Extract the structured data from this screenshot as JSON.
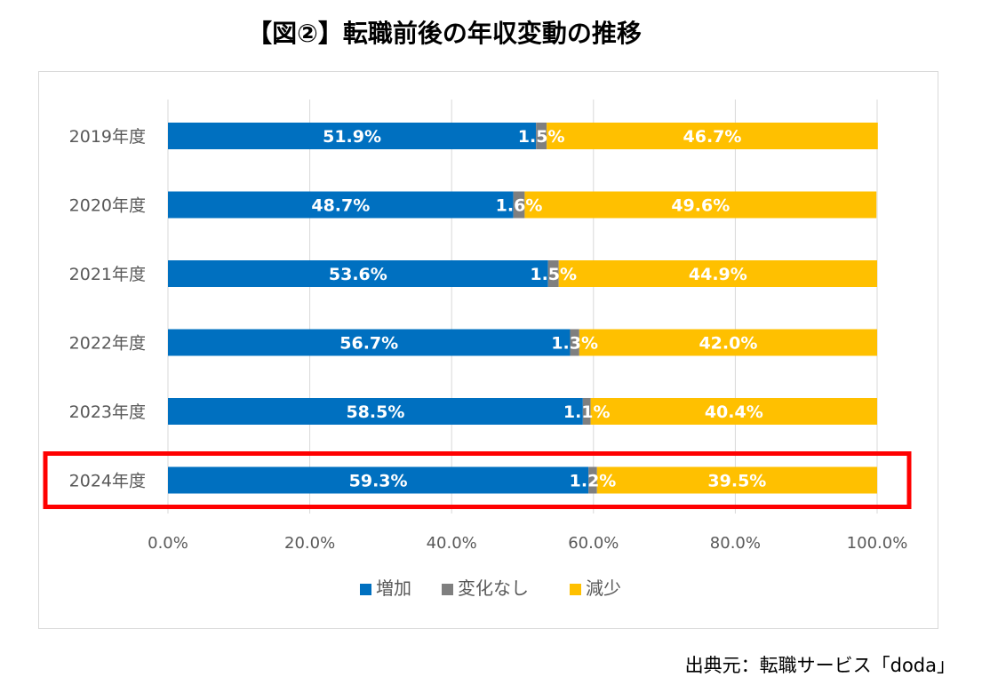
{
  "title": "【図②】転職前後の年収変動の推移",
  "source": "出典元：転職サービス「doda」",
  "colors": {
    "increase": "#0070C0",
    "no_change": "#7F7F7F",
    "decrease": "#FFC000",
    "highlight": "#FF0000",
    "grid": "#d9d9d9",
    "axis_text": "#595959"
  },
  "chart_data": {
    "type": "bar",
    "orientation": "horizontal",
    "stacked": true,
    "categories": [
      "2019年度",
      "2020年度",
      "2021年度",
      "2022年度",
      "2023年度",
      "2024年度"
    ],
    "series": [
      {
        "name": "増加",
        "values": [
          51.9,
          48.7,
          53.6,
          56.7,
          58.5,
          59.3
        ],
        "labels": [
          "51.9%",
          "48.7%",
          "53.6%",
          "56.7%",
          "58.5%",
          "59.3%"
        ]
      },
      {
        "name": "変化なし",
        "values": [
          1.5,
          1.6,
          1.5,
          1.3,
          1.1,
          1.2
        ],
        "labels": [
          "1.5%",
          "1.6%",
          "1.5%",
          "1.3%",
          "1.1%",
          "1.2%"
        ]
      },
      {
        "name": "減少",
        "values": [
          46.7,
          49.6,
          44.9,
          42.0,
          40.4,
          39.5
        ],
        "labels": [
          "46.7%",
          "49.6%",
          "44.9%",
          "42.0%",
          "40.4%",
          "39.5%"
        ]
      }
    ],
    "xlim": [
      0,
      100
    ],
    "xticks": [
      "0.0%",
      "20.0%",
      "40.0%",
      "60.0%",
      "80.0%",
      "100.0%"
    ],
    "grid": true,
    "legend": "bottom",
    "highlighted_category": "2024年度"
  }
}
